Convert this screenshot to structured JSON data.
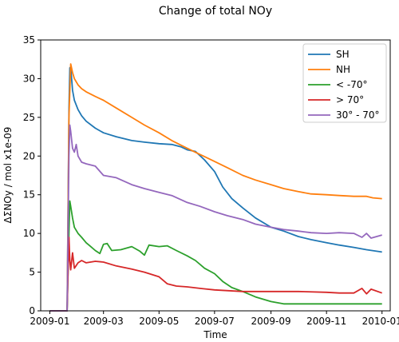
{
  "chart_data": {
    "type": "line",
    "title": "Change of total NOy",
    "xlabel": "Time",
    "ylabel": "ΔΣNOy / mol x1e-09",
    "xlim": [
      "2008-12-22",
      "2010-01-10"
    ],
    "ylim": [
      0,
      35
    ],
    "yticks": [
      0,
      5,
      10,
      15,
      20,
      25,
      30,
      35
    ],
    "xticks": [
      "2009-01",
      "2009-03",
      "2009-05",
      "2009-07",
      "2009-09",
      "2009-11",
      "2010-01"
    ],
    "x_tick_dates": [
      "2009-01-01",
      "2009-03-01",
      "2009-05-01",
      "2009-07-01",
      "2009-09-01",
      "2009-11-01",
      "2010-01-01"
    ],
    "grid": false,
    "legend_position": "top-right",
    "series": [
      {
        "name": "SH",
        "color": "#1f77b4",
        "points": [
          [
            "2009-01-01",
            0
          ],
          [
            "2009-01-20",
            0
          ],
          [
            "2009-01-22",
            26
          ],
          [
            "2009-01-23",
            31.4
          ],
          [
            "2009-01-24",
            31.5
          ],
          [
            "2009-01-26",
            28.5
          ],
          [
            "2009-01-28",
            27.2
          ],
          [
            "2009-02-01",
            26.0
          ],
          [
            "2009-02-05",
            25.2
          ],
          [
            "2009-02-10",
            24.5
          ],
          [
            "2009-02-20",
            23.6
          ],
          [
            "2009-03-01",
            23.0
          ],
          [
            "2009-03-15",
            22.5
          ],
          [
            "2009-04-01",
            22.0
          ],
          [
            "2009-04-15",
            21.8
          ],
          [
            "2009-05-01",
            21.6
          ],
          [
            "2009-05-15",
            21.5
          ],
          [
            "2009-05-25",
            21.2
          ],
          [
            "2009-06-01",
            20.8
          ],
          [
            "2009-06-10",
            20.6
          ],
          [
            "2009-06-20",
            19.5
          ],
          [
            "2009-07-01",
            18.0
          ],
          [
            "2009-07-10",
            16.0
          ],
          [
            "2009-07-20",
            14.5
          ],
          [
            "2009-08-01",
            13.3
          ],
          [
            "2009-08-15",
            12.0
          ],
          [
            "2009-09-01",
            10.8
          ],
          [
            "2009-09-15",
            10.3
          ],
          [
            "2009-10-01",
            9.6
          ],
          [
            "2009-10-15",
            9.2
          ],
          [
            "2009-11-01",
            8.8
          ],
          [
            "2009-11-15",
            8.5
          ],
          [
            "2009-12-01",
            8.2
          ],
          [
            "2009-12-15",
            7.9
          ],
          [
            "2010-01-01",
            7.6
          ]
        ]
      },
      {
        "name": "NH",
        "color": "#ff7f0e",
        "points": [
          [
            "2009-01-01",
            0
          ],
          [
            "2009-01-20",
            0
          ],
          [
            "2009-01-22",
            25
          ],
          [
            "2009-01-24",
            31.9
          ],
          [
            "2009-01-26",
            30.8
          ],
          [
            "2009-01-28",
            30.0
          ],
          [
            "2009-02-01",
            29.2
          ],
          [
            "2009-02-05",
            28.7
          ],
          [
            "2009-02-10",
            28.3
          ],
          [
            "2009-02-20",
            27.7
          ],
          [
            "2009-03-01",
            27.2
          ],
          [
            "2009-03-15",
            26.2
          ],
          [
            "2009-04-01",
            25.0
          ],
          [
            "2009-04-15",
            24.0
          ],
          [
            "2009-05-01",
            23.0
          ],
          [
            "2009-05-15",
            22.0
          ],
          [
            "2009-06-01",
            21.0
          ],
          [
            "2009-06-15",
            20.2
          ],
          [
            "2009-07-01",
            19.3
          ],
          [
            "2009-07-15",
            18.5
          ],
          [
            "2009-08-01",
            17.5
          ],
          [
            "2009-08-15",
            16.9
          ],
          [
            "2009-09-01",
            16.3
          ],
          [
            "2009-09-15",
            15.8
          ],
          [
            "2009-10-01",
            15.4
          ],
          [
            "2009-10-15",
            15.1
          ],
          [
            "2009-11-01",
            15.0
          ],
          [
            "2009-11-15",
            14.9
          ],
          [
            "2009-12-01",
            14.8
          ],
          [
            "2009-12-15",
            14.8
          ],
          [
            "2009-12-22",
            14.6
          ],
          [
            "2010-01-01",
            14.5
          ]
        ]
      },
      {
        "name": "< -70°",
        "color": "#2ca02c",
        "points": [
          [
            "2009-01-01",
            0
          ],
          [
            "2009-01-20",
            0
          ],
          [
            "2009-01-22",
            10
          ],
          [
            "2009-01-23",
            14.2
          ],
          [
            "2009-01-24",
            13.5
          ],
          [
            "2009-01-26",
            12.0
          ],
          [
            "2009-01-28",
            10.8
          ],
          [
            "2009-02-01",
            10.0
          ],
          [
            "2009-02-05",
            9.5
          ],
          [
            "2009-02-10",
            8.8
          ],
          [
            "2009-02-15",
            8.3
          ],
          [
            "2009-02-20",
            7.8
          ],
          [
            "2009-02-25",
            7.4
          ],
          [
            "2009-03-01",
            8.6
          ],
          [
            "2009-03-05",
            8.7
          ],
          [
            "2009-03-10",
            7.8
          ],
          [
            "2009-03-20",
            7.9
          ],
          [
            "2009-04-01",
            8.3
          ],
          [
            "2009-04-10",
            7.7
          ],
          [
            "2009-04-15",
            7.2
          ],
          [
            "2009-04-20",
            8.5
          ],
          [
            "2009-05-01",
            8.3
          ],
          [
            "2009-05-10",
            8.4
          ],
          [
            "2009-05-20",
            7.8
          ],
          [
            "2009-06-01",
            7.1
          ],
          [
            "2009-06-10",
            6.5
          ],
          [
            "2009-06-20",
            5.5
          ],
          [
            "2009-07-01",
            4.8
          ],
          [
            "2009-07-10",
            3.8
          ],
          [
            "2009-07-20",
            3.0
          ],
          [
            "2009-08-01",
            2.5
          ],
          [
            "2009-08-15",
            1.8
          ],
          [
            "2009-09-01",
            1.2
          ],
          [
            "2009-09-15",
            0.9
          ],
          [
            "2009-10-01",
            0.9
          ],
          [
            "2009-11-01",
            0.9
          ],
          [
            "2009-12-01",
            0.9
          ],
          [
            "2010-01-01",
            0.9
          ]
        ]
      },
      {
        "name": "> 70°",
        "color": "#d62728",
        "points": [
          [
            "2009-01-01",
            0
          ],
          [
            "2009-01-20",
            0
          ],
          [
            "2009-01-22",
            9.5
          ],
          [
            "2009-01-23",
            6.5
          ],
          [
            "2009-01-24",
            5.3
          ],
          [
            "2009-01-26",
            7.5
          ],
          [
            "2009-01-28",
            5.5
          ],
          [
            "2009-02-01",
            6.2
          ],
          [
            "2009-02-05",
            6.5
          ],
          [
            "2009-02-10",
            6.2
          ],
          [
            "2009-02-20",
            6.4
          ],
          [
            "2009-03-01",
            6.3
          ],
          [
            "2009-03-15",
            5.8
          ],
          [
            "2009-04-01",
            5.4
          ],
          [
            "2009-04-15",
            5.0
          ],
          [
            "2009-05-01",
            4.4
          ],
          [
            "2009-05-10",
            3.5
          ],
          [
            "2009-05-20",
            3.2
          ],
          [
            "2009-06-01",
            3.1
          ],
          [
            "2009-06-15",
            2.9
          ],
          [
            "2009-07-01",
            2.7
          ],
          [
            "2009-08-01",
            2.5
          ],
          [
            "2009-09-01",
            2.5
          ],
          [
            "2009-10-01",
            2.5
          ],
          [
            "2009-11-01",
            2.4
          ],
          [
            "2009-11-15",
            2.3
          ],
          [
            "2009-12-01",
            2.3
          ],
          [
            "2009-12-10",
            2.9
          ],
          [
            "2009-12-15",
            2.2
          ],
          [
            "2009-12-20",
            2.8
          ],
          [
            "2010-01-01",
            2.3
          ]
        ]
      },
      {
        "name": "30° - 70°",
        "color": "#9467bd",
        "points": [
          [
            "2009-01-01",
            0
          ],
          [
            "2009-01-20",
            0
          ],
          [
            "2009-01-22",
            20
          ],
          [
            "2009-01-23",
            24.0
          ],
          [
            "2009-01-24",
            23.2
          ],
          [
            "2009-01-26",
            21.0
          ],
          [
            "2009-01-28",
            20.5
          ],
          [
            "2009-01-30",
            21.5
          ],
          [
            "2009-02-01",
            20.0
          ],
          [
            "2009-02-05",
            19.2
          ],
          [
            "2009-02-10",
            19.0
          ],
          [
            "2009-02-20",
            18.7
          ],
          [
            "2009-03-01",
            17.5
          ],
          [
            "2009-03-15",
            17.2
          ],
          [
            "2009-04-01",
            16.3
          ],
          [
            "2009-04-15",
            15.8
          ],
          [
            "2009-05-01",
            15.3
          ],
          [
            "2009-05-15",
            14.9
          ],
          [
            "2009-06-01",
            14.0
          ],
          [
            "2009-06-15",
            13.5
          ],
          [
            "2009-07-01",
            12.8
          ],
          [
            "2009-07-15",
            12.3
          ],
          [
            "2009-08-01",
            11.8
          ],
          [
            "2009-08-15",
            11.2
          ],
          [
            "2009-09-01",
            10.8
          ],
          [
            "2009-09-15",
            10.5
          ],
          [
            "2009-10-01",
            10.3
          ],
          [
            "2009-10-15",
            10.1
          ],
          [
            "2009-11-01",
            10.0
          ],
          [
            "2009-11-15",
            10.1
          ],
          [
            "2009-12-01",
            10.0
          ],
          [
            "2009-12-10",
            9.5
          ],
          [
            "2009-12-15",
            10.0
          ],
          [
            "2009-12-20",
            9.4
          ],
          [
            "2010-01-01",
            9.8
          ]
        ]
      }
    ]
  }
}
